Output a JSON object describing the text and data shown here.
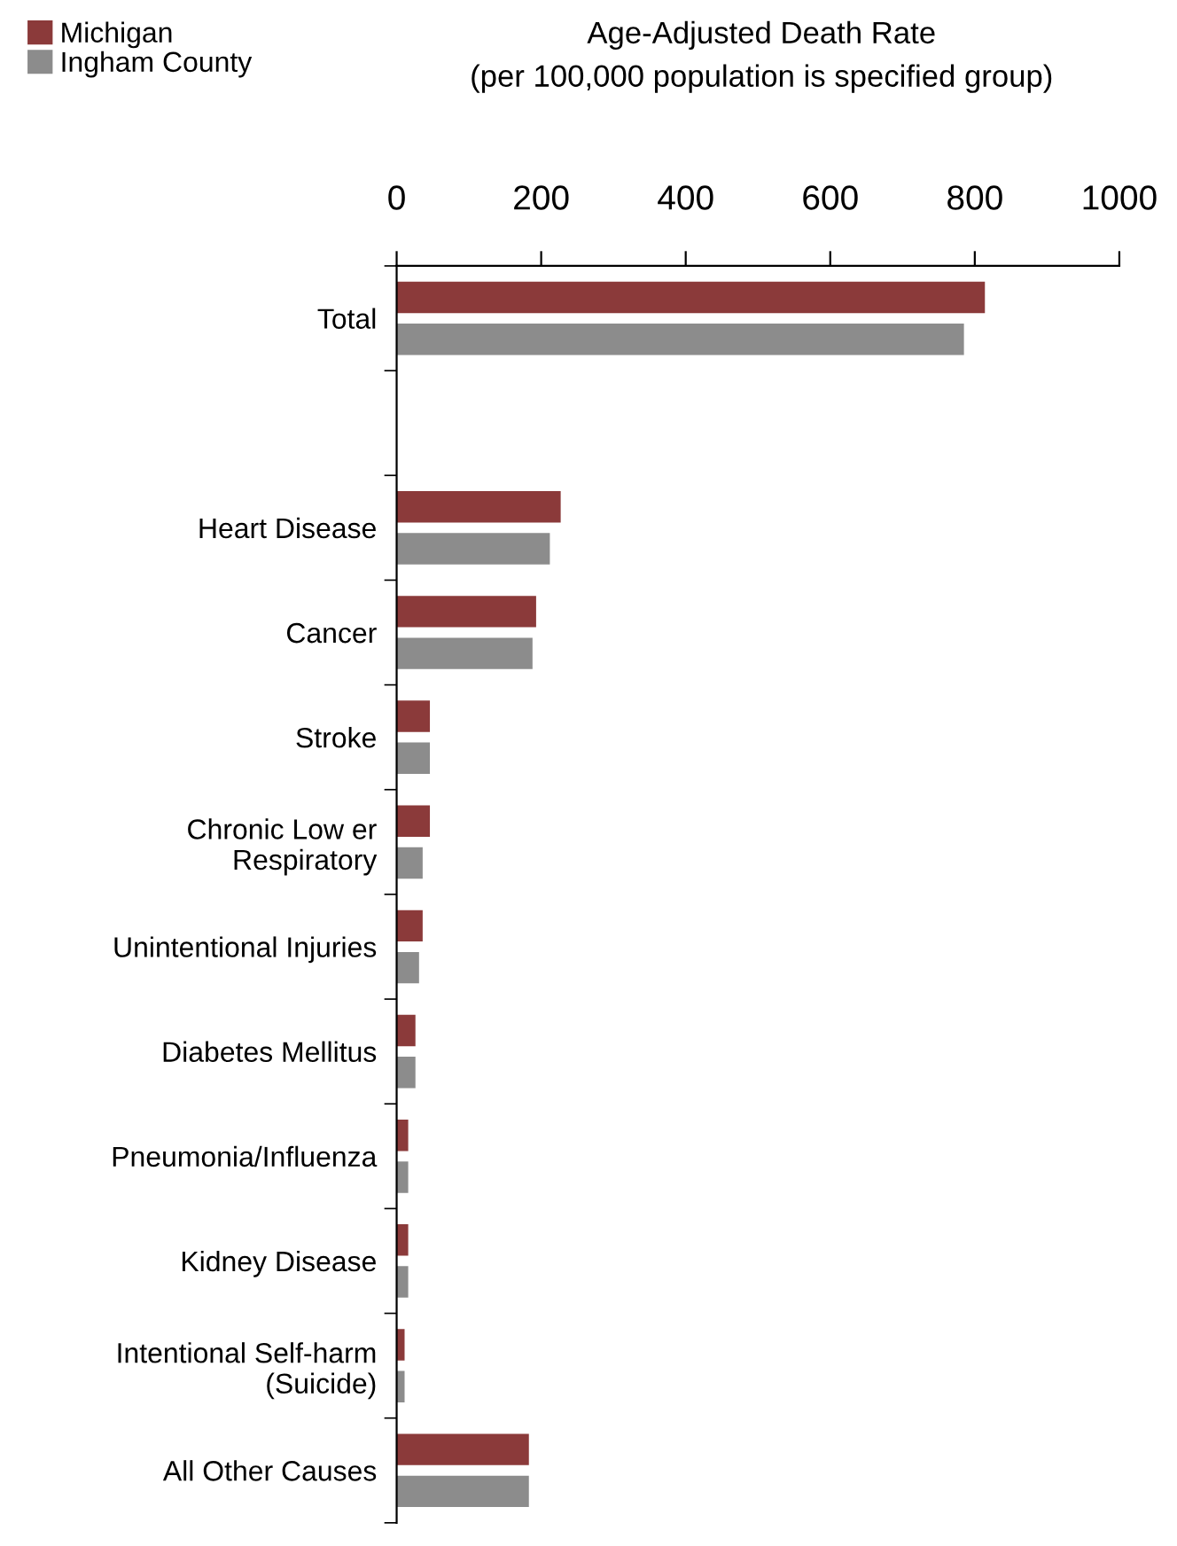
{
  "chart_data": {
    "type": "bar",
    "orientation": "horizontal",
    "title": "Age-Adjusted Death Rate",
    "subtitle": "(per 100,000 population is specified group)",
    "categories": [
      "Total",
      null,
      "Heart Disease",
      "Cancer",
      "Stroke",
      "Chronic Low er\nRespiratory",
      "Unintentional Injuries",
      "Diabetes Mellitus",
      "Pneumonia/Influenza",
      "Kidney Disease",
      "Intentional Self-harm\n(Suicide)",
      "All Other Causes"
    ],
    "series": [
      {
        "name": "Michigan",
        "color": "#8b3a3a",
        "values": [
          814,
          null,
          227,
          193,
          46,
          46,
          36,
          26,
          16,
          16,
          11,
          183
        ]
      },
      {
        "name": "Ingham County",
        "color": "#8c8c8c",
        "values": [
          785,
          null,
          212,
          188,
          46,
          36,
          31,
          26,
          16,
          16,
          11,
          183
        ]
      }
    ],
    "xlim": [
      0,
      1000
    ],
    "xticks": [
      0,
      200,
      400,
      600,
      800,
      1000
    ],
    "grid": false,
    "legend": "top left"
  }
}
